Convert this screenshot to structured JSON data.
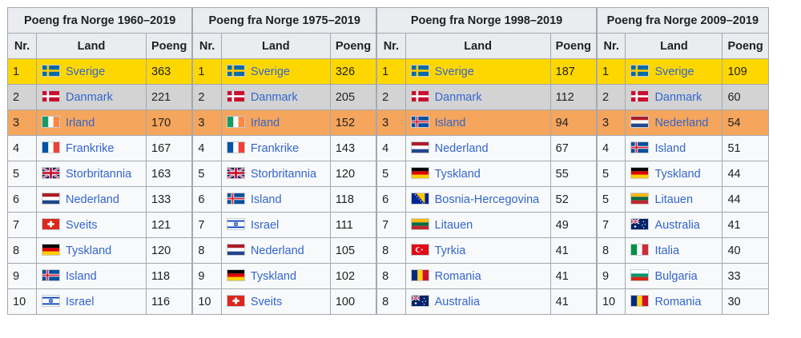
{
  "headers": {
    "titles": [
      "Poeng fra Norge 1960–2019",
      "Poeng fra Norge 1975–2019",
      "Poeng fra Norge 1998–2019",
      "Poeng fra Norge 2009–2019"
    ],
    "nr": "Nr.",
    "land": "Land",
    "poeng": "Poeng"
  },
  "rows": [
    {
      "style": "gold",
      "cells": [
        {
          "nr": "1",
          "land": "Sverige",
          "flag": "sweden",
          "poeng": "363"
        },
        {
          "nr": "1",
          "land": "Sverige",
          "flag": "sweden",
          "poeng": "326"
        },
        {
          "nr": "1",
          "land": "Sverige",
          "flag": "sweden",
          "poeng": "187"
        },
        {
          "nr": "1",
          "land": "Sverige",
          "flag": "sweden",
          "poeng": "109"
        }
      ]
    },
    {
      "style": "silver",
      "cells": [
        {
          "nr": "2",
          "land": "Danmark",
          "flag": "denmark",
          "poeng": "221"
        },
        {
          "nr": "2",
          "land": "Danmark",
          "flag": "denmark",
          "poeng": "205"
        },
        {
          "nr": "2",
          "land": "Danmark",
          "flag": "denmark",
          "poeng": "112"
        },
        {
          "nr": "2",
          "land": "Danmark",
          "flag": "denmark",
          "poeng": "60"
        }
      ]
    },
    {
      "style": "bronze",
      "cells": [
        {
          "nr": "3",
          "land": "Irland",
          "flag": "ireland",
          "poeng": "170"
        },
        {
          "nr": "3",
          "land": "Irland",
          "flag": "ireland",
          "poeng": "152"
        },
        {
          "nr": "3",
          "land": "Island",
          "flag": "iceland",
          "poeng": "94"
        },
        {
          "nr": "3",
          "land": "Nederland",
          "flag": "netherlands",
          "poeng": "54"
        }
      ]
    },
    {
      "style": "",
      "cells": [
        {
          "nr": "4",
          "land": "Frankrike",
          "flag": "france",
          "poeng": "167"
        },
        {
          "nr": "4",
          "land": "Frankrike",
          "flag": "france",
          "poeng": "143"
        },
        {
          "nr": "4",
          "land": "Nederland",
          "flag": "netherlands",
          "poeng": "67"
        },
        {
          "nr": "4",
          "land": "Island",
          "flag": "iceland",
          "poeng": "51"
        }
      ]
    },
    {
      "style": "",
      "cells": [
        {
          "nr": "5",
          "land": "Storbritannia",
          "flag": "uk",
          "poeng": "163"
        },
        {
          "nr": "5",
          "land": "Storbritannia",
          "flag": "uk",
          "poeng": "120"
        },
        {
          "nr": "5",
          "land": "Tyskland",
          "flag": "germany",
          "poeng": "55"
        },
        {
          "nr": "5",
          "land": "Tyskland",
          "flag": "germany",
          "poeng": "44"
        }
      ]
    },
    {
      "style": "",
      "cells": [
        {
          "nr": "6",
          "land": "Nederland",
          "flag": "netherlands",
          "poeng": "133"
        },
        {
          "nr": "6",
          "land": "Island",
          "flag": "iceland",
          "poeng": "118"
        },
        {
          "nr": "6",
          "land": "Bosnia-Hercegovina",
          "flag": "bosnia",
          "poeng": "52"
        },
        {
          "nr": "5",
          "land": "Litauen",
          "flag": "lithuania",
          "poeng": "44"
        }
      ]
    },
    {
      "style": "",
      "cells": [
        {
          "nr": "7",
          "land": "Sveits",
          "flag": "switzerland",
          "poeng": "121"
        },
        {
          "nr": "7",
          "land": "Israel",
          "flag": "israel",
          "poeng": "111"
        },
        {
          "nr": "7",
          "land": "Litauen",
          "flag": "lithuania",
          "poeng": "49"
        },
        {
          "nr": "7",
          "land": "Australia",
          "flag": "australia",
          "poeng": "41"
        }
      ]
    },
    {
      "style": "",
      "cells": [
        {
          "nr": "8",
          "land": "Tyskland",
          "flag": "germany",
          "poeng": "120"
        },
        {
          "nr": "8",
          "land": "Nederland",
          "flag": "netherlands",
          "poeng": "105"
        },
        {
          "nr": "8",
          "land": "Tyrkia",
          "flag": "turkey",
          "poeng": "41"
        },
        {
          "nr": "8",
          "land": "Italia",
          "flag": "italy",
          "poeng": "40"
        }
      ]
    },
    {
      "style": "",
      "cells": [
        {
          "nr": "9",
          "land": "Island",
          "flag": "iceland",
          "poeng": "118"
        },
        {
          "nr": "9",
          "land": "Tyskland",
          "flag": "germany",
          "poeng": "102"
        },
        {
          "nr": "8",
          "land": "Romania",
          "flag": "romania",
          "poeng": "41"
        },
        {
          "nr": "9",
          "land": "Bulgaria",
          "flag": "bulgaria",
          "poeng": "33"
        }
      ]
    },
    {
      "style": "",
      "cells": [
        {
          "nr": "10",
          "land": "Israel",
          "flag": "israel",
          "poeng": "116"
        },
        {
          "nr": "10",
          "land": "Sveits",
          "flag": "switzerland",
          "poeng": "100"
        },
        {
          "nr": "8",
          "land": "Australia",
          "flag": "australia",
          "poeng": "41"
        },
        {
          "nr": "10",
          "land": "Romania",
          "flag": "romania",
          "poeng": "30"
        }
      ]
    }
  ],
  "colors": {
    "gold": "#ffd700",
    "silver": "#d3d3d3",
    "bronze": "#f5a55c",
    "link": "#3366cc",
    "header_bg": "#eaecf0",
    "cell_bg": "#f8f9fa",
    "border": "#a2a9b1"
  }
}
